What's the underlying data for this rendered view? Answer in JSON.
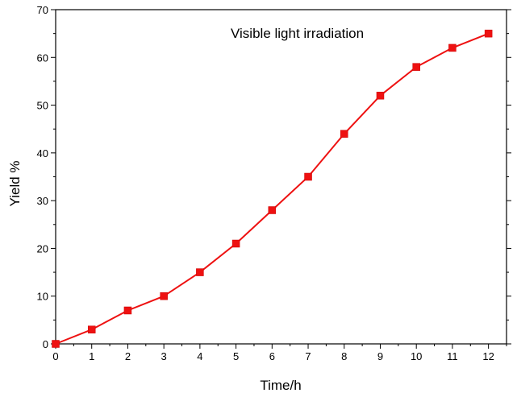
{
  "chart_data": {
    "type": "line",
    "title": "",
    "annotation": "Visible light irradiation",
    "xlabel": "Time/h",
    "ylabel": "Yield %",
    "xlim": [
      0,
      12.5
    ],
    "ylim": [
      0,
      70
    ],
    "xticks": [
      0,
      1,
      2,
      3,
      4,
      5,
      6,
      7,
      8,
      9,
      10,
      11,
      12
    ],
    "yticks": [
      0,
      10,
      20,
      30,
      40,
      50,
      60,
      70
    ],
    "grid": false,
    "colors": {
      "series": "#ee1111",
      "axis": "#000000"
    },
    "series": [
      {
        "name": "Yield",
        "marker": "square",
        "x": [
          0,
          1,
          2,
          3,
          4,
          5,
          6,
          7,
          8,
          9,
          10,
          11,
          12
        ],
        "y": [
          0,
          3,
          7,
          10,
          15,
          21,
          28,
          35,
          44,
          52,
          58,
          62,
          65
        ]
      }
    ]
  }
}
